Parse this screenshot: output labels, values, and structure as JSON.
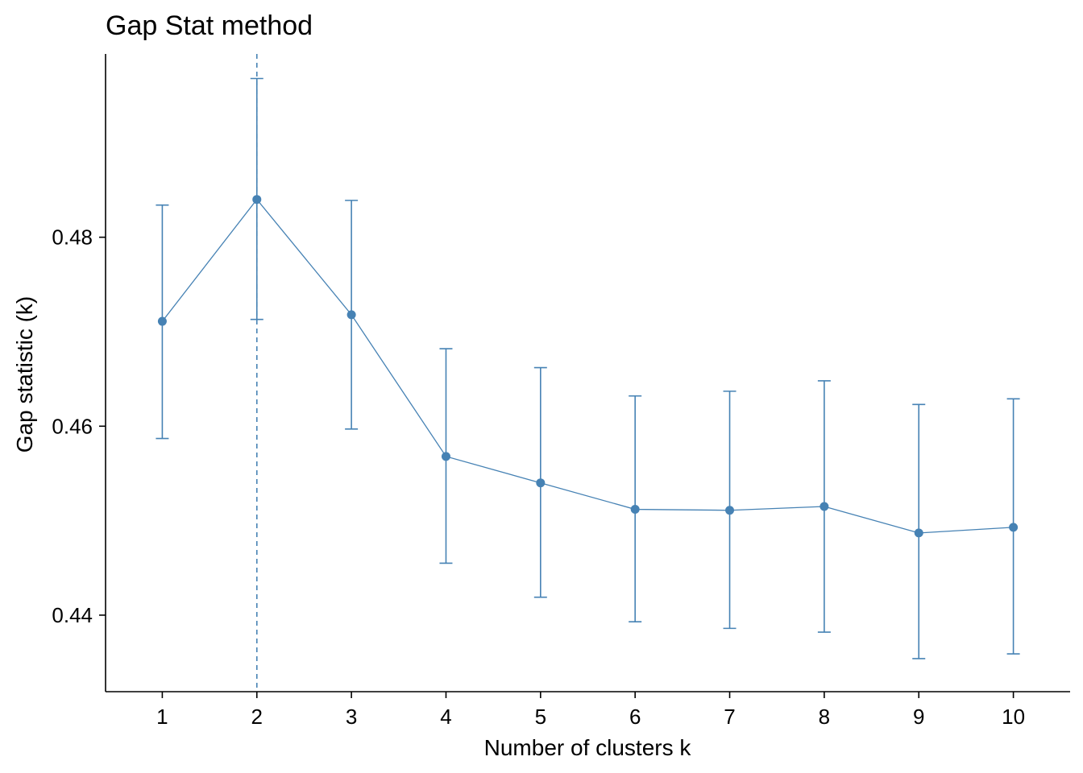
{
  "chart_data": {
    "type": "line",
    "title": "Gap Stat method",
    "xlabel": "Number of clusters k",
    "ylabel": "Gap statistic (k)",
    "x": [
      1,
      2,
      3,
      4,
      5,
      6,
      7,
      8,
      9,
      10
    ],
    "x_tick_labels": [
      "1",
      "2",
      "3",
      "4",
      "5",
      "6",
      "7",
      "8",
      "9",
      "10"
    ],
    "y_ticks": [
      0.44,
      0.46,
      0.48
    ],
    "y_tick_labels": [
      "0.44",
      "0.46",
      "0.48"
    ],
    "xlim": [
      0.4,
      10.6
    ],
    "ylim": [
      0.4319,
      0.4994
    ],
    "series": [
      {
        "values": [
          0.4711,
          0.484,
          0.4718,
          0.4568,
          0.454,
          0.4512,
          0.4511,
          0.4515,
          0.4487,
          0.4493
        ],
        "error_lower": [
          0.4587,
          0.4713,
          0.4597,
          0.4455,
          0.4419,
          0.4393,
          0.4386,
          0.4382,
          0.4354,
          0.4359
        ],
        "error_upper": [
          0.4834,
          0.4968,
          0.4839,
          0.4682,
          0.4662,
          0.4632,
          0.4637,
          0.4648,
          0.4623,
          0.4629
        ],
        "color": "#4682B4"
      }
    ],
    "optimal_k": 2,
    "optimal_line_style": "dashed",
    "grid": false,
    "legend": "none"
  }
}
